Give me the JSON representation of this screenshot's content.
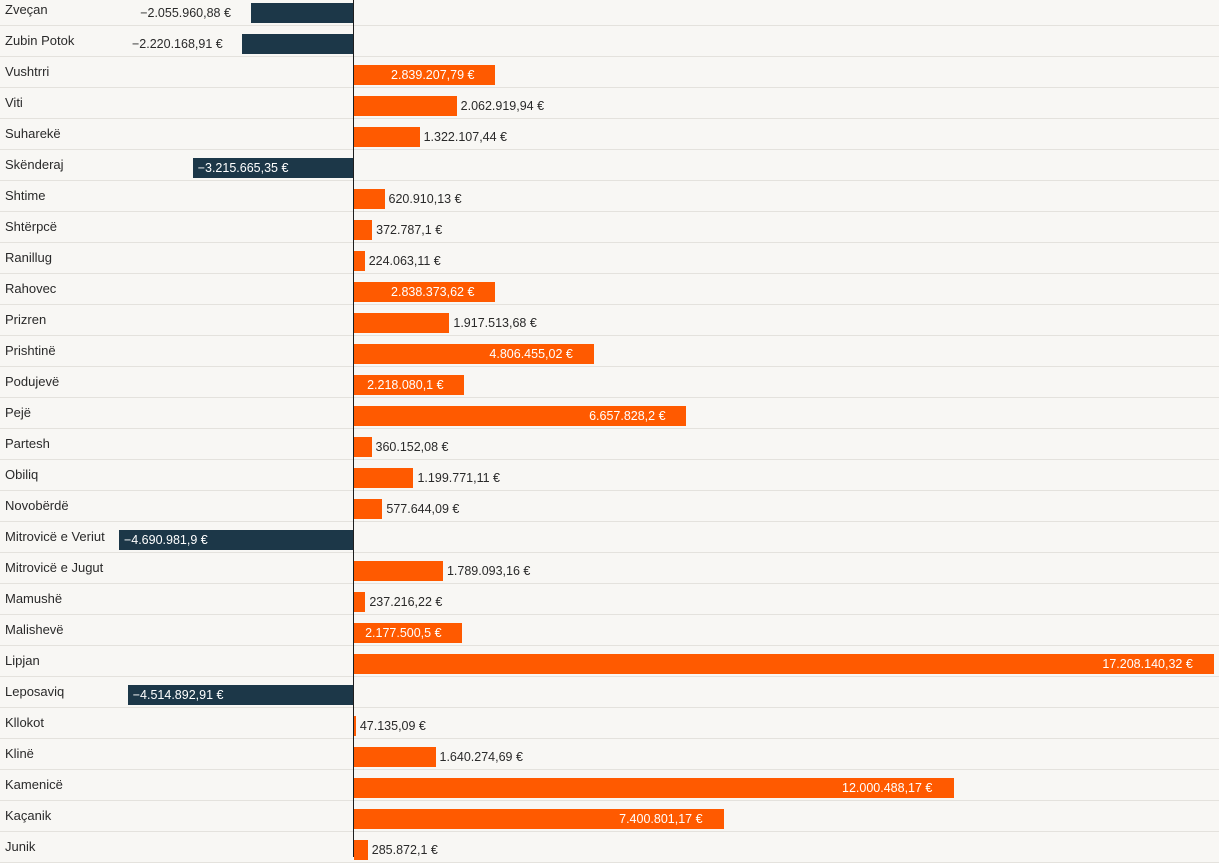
{
  "colors": {
    "positive": "#ff5a00",
    "negative": "#1c3748",
    "background": "#f8f7f4"
  },
  "chart_data": {
    "type": "bar",
    "orientation": "horizontal",
    "title": "",
    "xlabel": "",
    "ylabel": "",
    "unit": "€",
    "categories": [
      "Zveçan",
      "Zubin Potok",
      "Vushtrri",
      "Viti",
      "Suharekë",
      "Skënderaj",
      "Shtime",
      "Shtërpcë",
      "Ranillug",
      "Rahovec",
      "Prizren",
      "Prishtinë",
      "Podujevë",
      "Pejë",
      "Partesh",
      "Obiliq",
      "Novobërdë",
      "Mitrovicë e Veriut",
      "Mitrovicë e Jugut",
      "Mamushë",
      "Malishevë",
      "Lipjan",
      "Leposaviq",
      "Kllokot",
      "Klinë",
      "Kamenicë",
      "Kaçanik",
      "Junik"
    ],
    "values": [
      -2055960.88,
      -2220168.91,
      2839207.79,
      2062919.94,
      1322107.44,
      -3215665.35,
      620910.13,
      372787.1,
      224063.11,
      2838373.62,
      1917513.68,
      4806455.02,
      2218080.1,
      6657828.2,
      360152.08,
      1199771.11,
      577644.09,
      -4690981.9,
      1789093.16,
      237216.22,
      2177500.5,
      17208140.32,
      -4514892.91,
      47135.09,
      1640274.69,
      12000488.17,
      7400801.17,
      285872.1
    ],
    "value_labels": [
      "−2.055.960,88 €",
      "−2.220.168,91 €",
      "2.839.207,79 €",
      "2.062.919,94 €",
      "1.322.107,44 €",
      "−3.215.665,35 €",
      "620.910,13 €",
      "372.787,1 €",
      "224.063,11 €",
      "2.838.373,62 €",
      "1.917.513,68 €",
      "4.806.455,02 €",
      "2.218.080,1 €",
      "6.657.828,2 €",
      "360.152,08 €",
      "1.199.771,11 €",
      "577.644,09 €",
      "−4.690.981,9 €",
      "1.789.093,16 €",
      "237.216,22 €",
      "2.177.500,5 €",
      "17.208.140,32 €",
      "−4.514.892,91 €",
      "47.135,09 €",
      "1.640.274,69 €",
      "12.000.488,17 €",
      "7.400.801,17 €",
      "285.872,1 €"
    ],
    "xlim": [
      -7000000,
      17300000
    ],
    "grid": false,
    "legend": "none"
  }
}
